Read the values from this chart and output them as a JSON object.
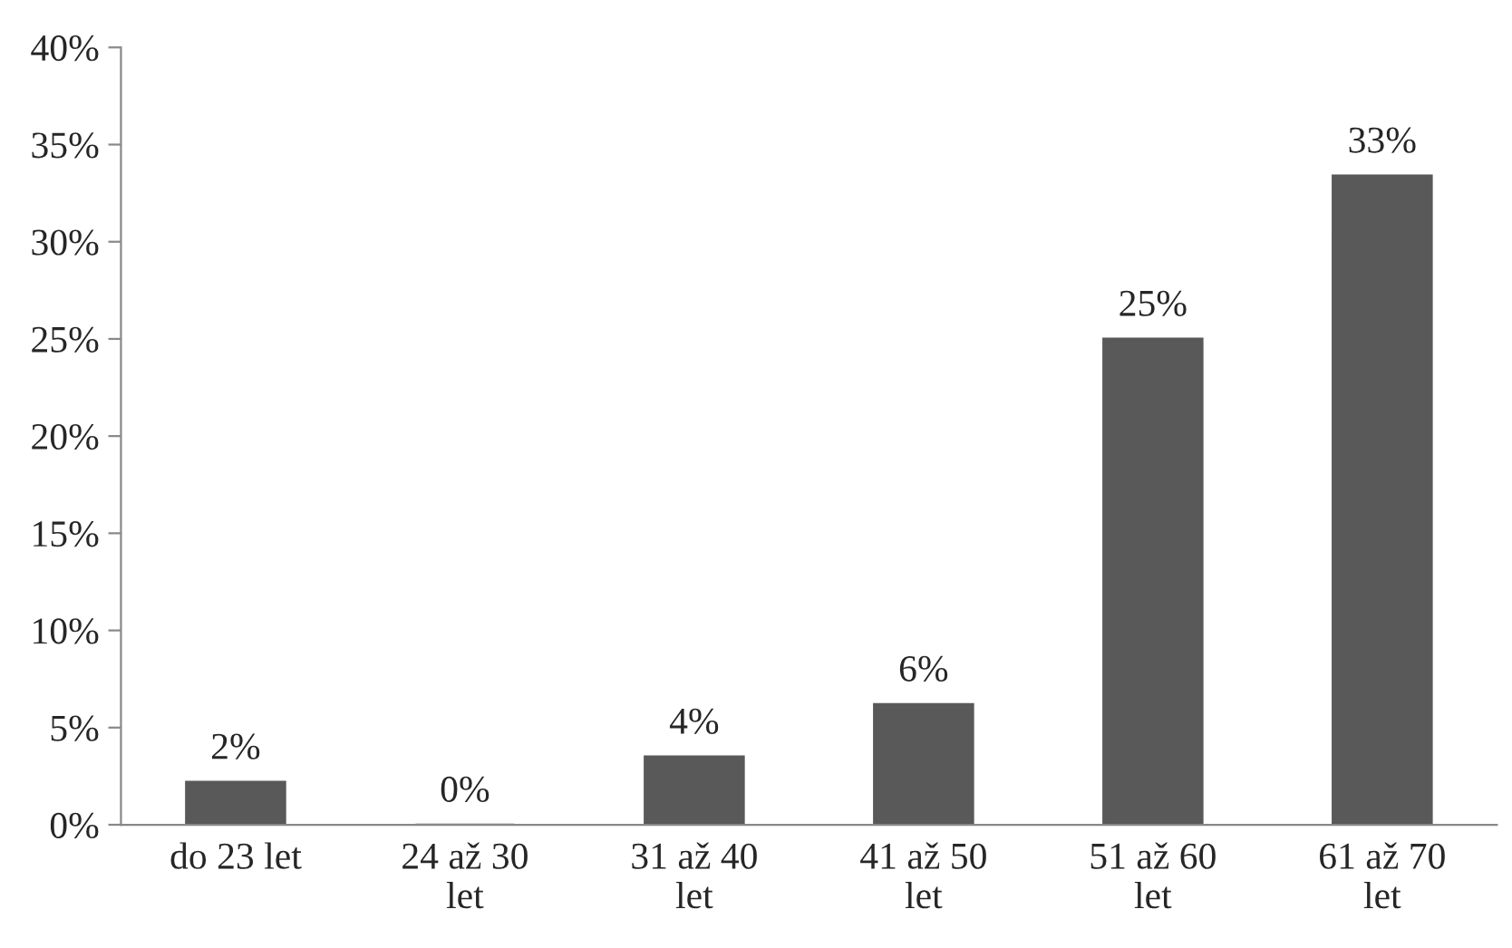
{
  "chart_data": {
    "type": "bar",
    "categories": [
      "do 23 let",
      "24 až 30\nlet",
      "31 až 40\nlet",
      "41 až 50\nlet",
      "51 až 60\nlet",
      "61 až 70\nlet"
    ],
    "values": [
      2.2,
      0,
      3.5,
      6.2,
      25,
      33.4
    ],
    "value_labels": [
      "2%",
      "0%",
      "4%",
      "6%",
      "25%",
      "33%"
    ],
    "color": "#595959",
    "ylim": [
      0,
      40
    ],
    "yticks": [
      {
        "value": 0,
        "label": "0%"
      },
      {
        "value": 5,
        "label": "5%"
      },
      {
        "value": 10,
        "label": "10%"
      },
      {
        "value": 15,
        "label": "15%"
      },
      {
        "value": 20,
        "label": "20%"
      },
      {
        "value": 25,
        "label": "25%"
      },
      {
        "value": 30,
        "label": "30%"
      },
      {
        "value": 35,
        "label": "35%"
      },
      {
        "value": 40,
        "label": "40%"
      }
    ],
    "grid": false,
    "legend": false
  }
}
